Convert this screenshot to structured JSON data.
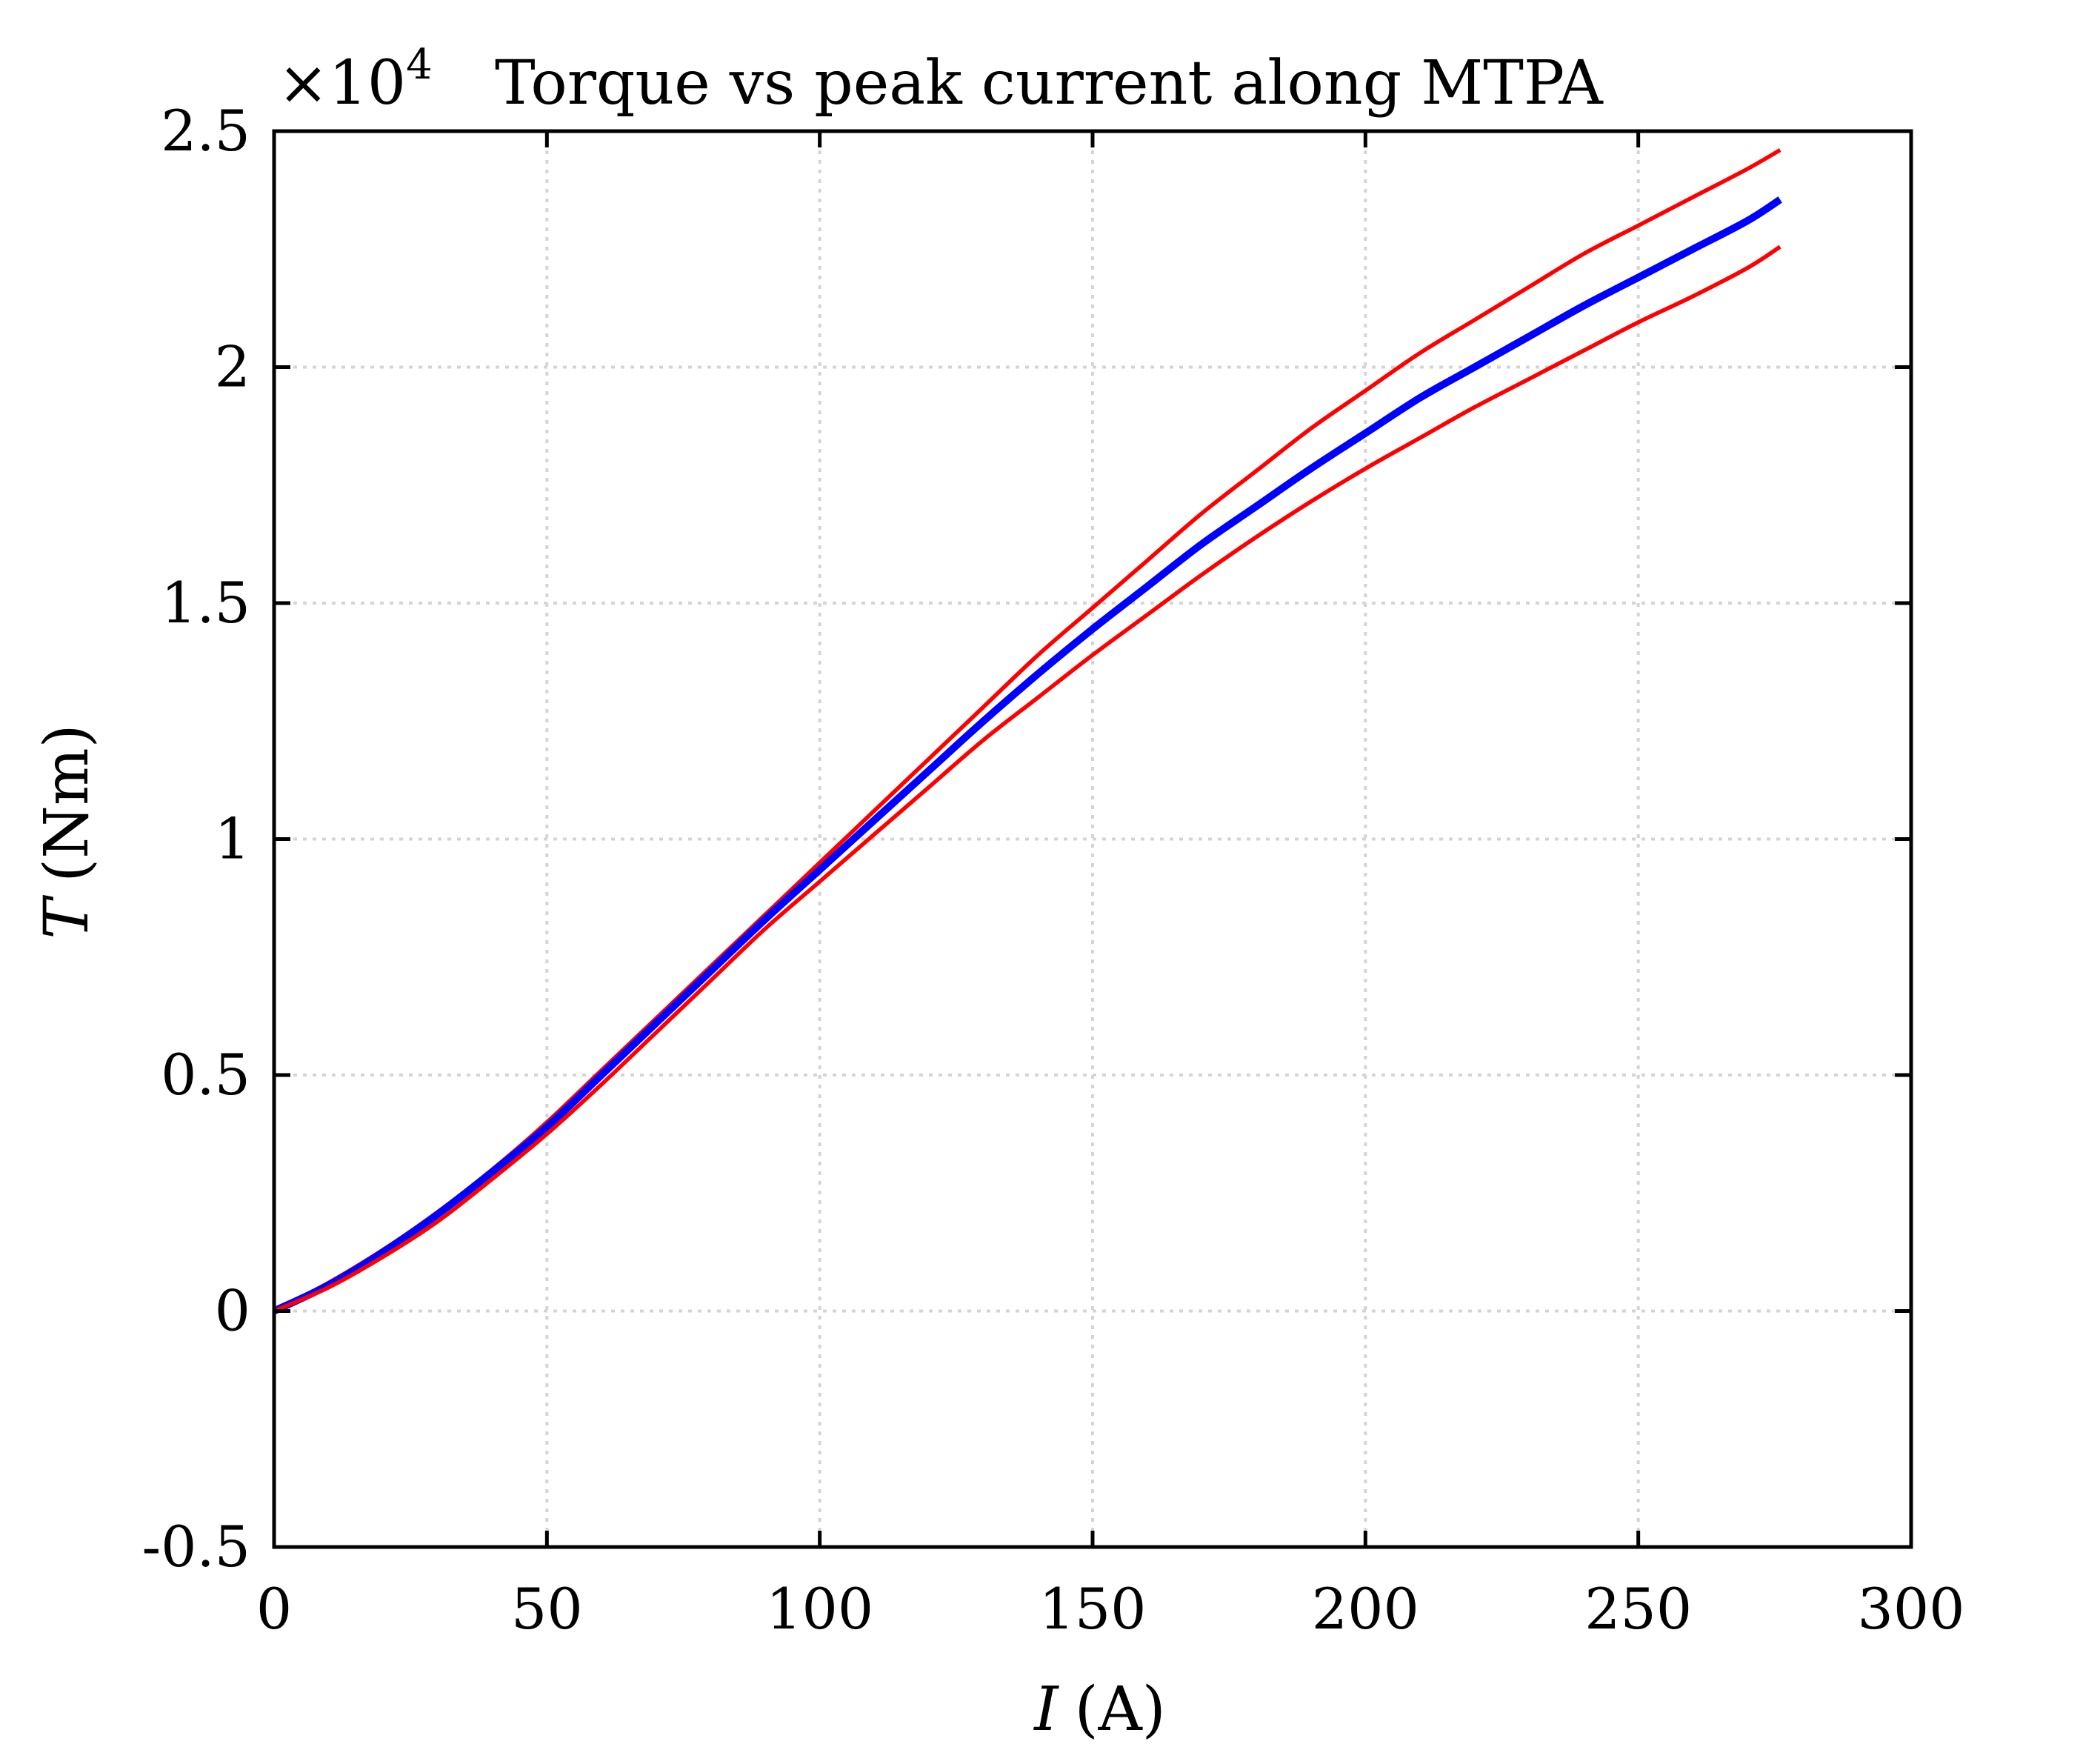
{
  "chart_data": {
    "type": "line",
    "title": "Torque vs peak current along MTPA",
    "multiplier_label": "×10",
    "multiplier_exponent": "4",
    "xlabel_var": "I",
    "xlabel_unit": "(A)",
    "ylabel_var": "T",
    "ylabel_unit": "(Nm)",
    "xlim": [
      0,
      300
    ],
    "ylim": [
      -0.5,
      2.5
    ],
    "x_ticks": [
      0,
      50,
      100,
      150,
      200,
      250,
      300
    ],
    "x_tick_labels": [
      "0",
      "50",
      "100",
      "150",
      "200",
      "250",
      "300"
    ],
    "y_ticks": [
      -0.5,
      0,
      0.5,
      1,
      1.5,
      2,
      2.5
    ],
    "y_tick_labels": [
      "-0.5",
      "0",
      "0.5",
      "1",
      "1.5",
      "2",
      "2.5"
    ],
    "grid": true,
    "series": [
      {
        "color": "#ff0000",
        "x": [
          0,
          10,
          20,
          30,
          40,
          50,
          60,
          70,
          80,
          90,
          100,
          110,
          120,
          130,
          140,
          150,
          160,
          170,
          180,
          190,
          200,
          210,
          220,
          230,
          240,
          250,
          260,
          270,
          276
        ],
        "y": [
          0.0,
          0.06,
          0.13,
          0.21,
          0.3,
          0.4,
          0.51,
          0.62,
          0.73,
          0.84,
          0.95,
          1.06,
          1.17,
          1.28,
          1.39,
          1.49,
          1.59,
          1.69,
          1.78,
          1.87,
          1.95,
          2.03,
          2.1,
          2.17,
          2.24,
          2.3,
          2.36,
          2.42,
          2.46
        ]
      },
      {
        "color": "#0000ff",
        "x": [
          0,
          10,
          20,
          30,
          40,
          50,
          60,
          70,
          80,
          90,
          100,
          110,
          120,
          130,
          140,
          150,
          160,
          170,
          180,
          190,
          200,
          210,
          220,
          230,
          240,
          250,
          260,
          270,
          276
        ],
        "y": [
          0.0,
          0.055,
          0.125,
          0.205,
          0.295,
          0.39,
          0.5,
          0.61,
          0.72,
          0.83,
          0.935,
          1.04,
          1.145,
          1.25,
          1.35,
          1.445,
          1.535,
          1.625,
          1.705,
          1.785,
          1.86,
          1.935,
          2.0,
          2.065,
          2.13,
          2.19,
          2.25,
          2.31,
          2.355
        ]
      },
      {
        "color": "#ff0000",
        "x": [
          0,
          10,
          20,
          30,
          40,
          50,
          60,
          70,
          80,
          90,
          100,
          110,
          120,
          130,
          140,
          150,
          160,
          170,
          180,
          190,
          200,
          210,
          220,
          230,
          240,
          250,
          260,
          270,
          276
        ],
        "y": [
          0.0,
          0.05,
          0.115,
          0.19,
          0.28,
          0.375,
          0.48,
          0.59,
          0.7,
          0.81,
          0.91,
          1.01,
          1.11,
          1.21,
          1.3,
          1.39,
          1.475,
          1.56,
          1.64,
          1.715,
          1.785,
          1.85,
          1.915,
          1.975,
          2.035,
          2.095,
          2.15,
          2.21,
          2.255
        ]
      }
    ]
  }
}
